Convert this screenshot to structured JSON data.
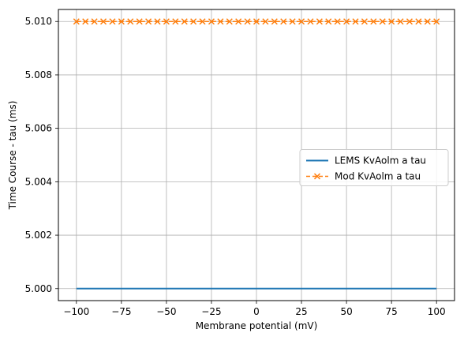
{
  "chart_data": {
    "type": "line",
    "title": "",
    "xlabel": "Membrane potential (mV)",
    "ylabel": "Time Course - tau (ms)",
    "xlim": [
      -110,
      110
    ],
    "ylim": [
      4.99955,
      5.01045
    ],
    "xticks": [
      -100,
      -75,
      -50,
      -25,
      0,
      25,
      50,
      75,
      100
    ],
    "xtick_labels": [
      "−100",
      "−75",
      "−50",
      "−25",
      "0",
      "25",
      "50",
      "75",
      "100"
    ],
    "yticks": [
      5.0,
      5.002,
      5.004,
      5.006,
      5.008,
      5.01
    ],
    "ytick_labels": [
      "5.000",
      "5.002",
      "5.004",
      "5.006",
      "5.008",
      "5.010"
    ],
    "grid": true,
    "legend_position": "center-right",
    "series": [
      {
        "name": "LEMS KvAolm a tau",
        "style": "solid",
        "marker": "none",
        "color": "#1f77b4",
        "x_start": -100,
        "x_end": 100,
        "x_step": 100,
        "y": 5.0
      },
      {
        "name": "Mod KvAolm a tau",
        "style": "dashed",
        "marker": "x",
        "color": "#ff7f0e",
        "x_start": -100,
        "x_end": 100,
        "x_step": 5,
        "y": 5.01
      }
    ]
  }
}
